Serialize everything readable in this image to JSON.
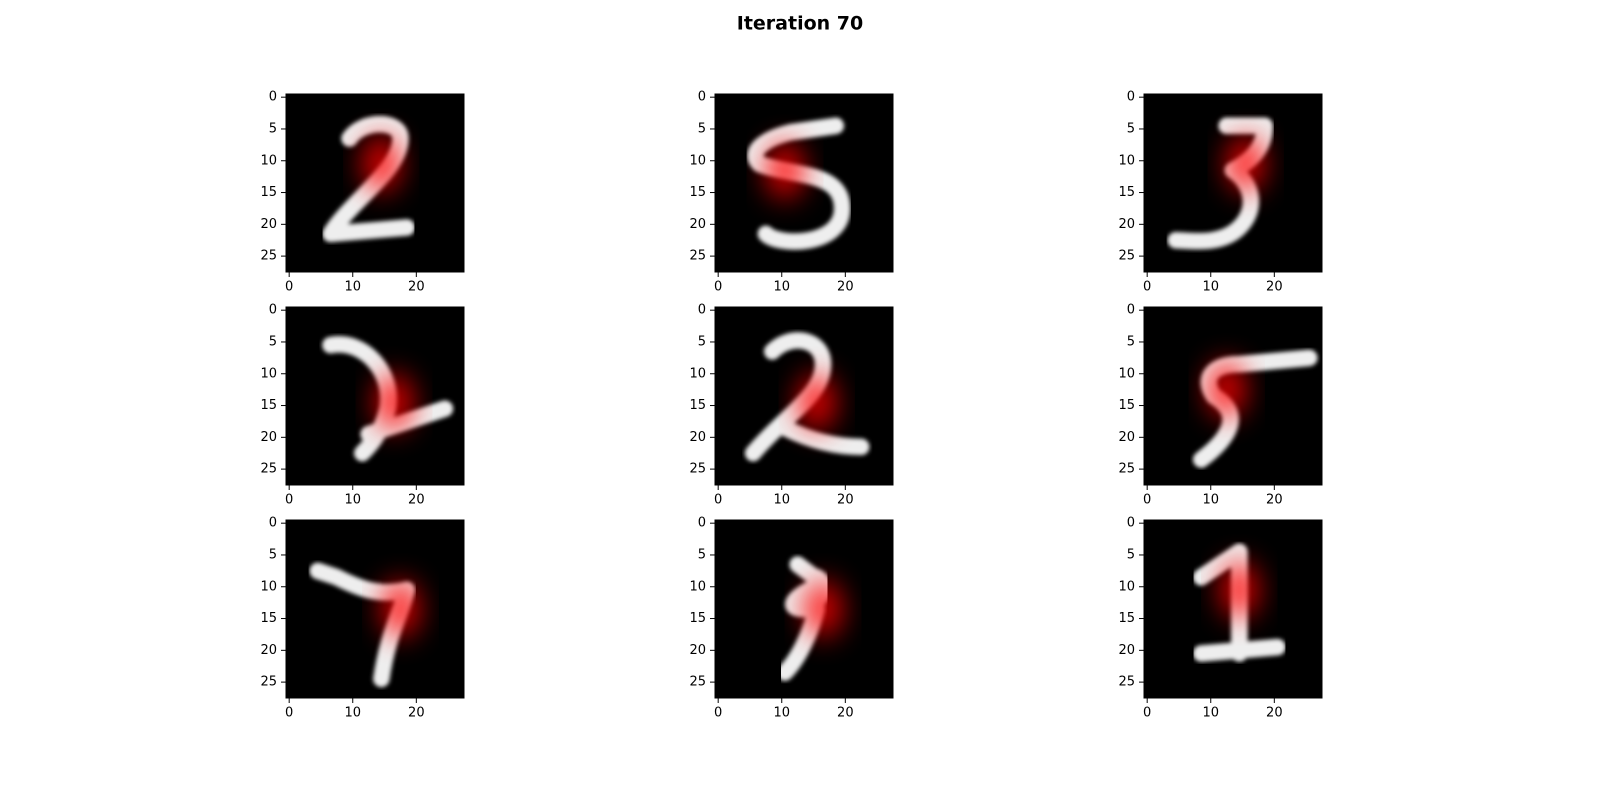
{
  "title": "Iteration 70",
  "chart_data": [
    {
      "type": "image",
      "xlim": [
        -0.5,
        27.5
      ],
      "ylim": [
        27.5,
        -0.5
      ],
      "xticks": [
        0,
        10,
        20
      ],
      "yticks": [
        0,
        5,
        10,
        15,
        20,
        25
      ]
    },
    {
      "type": "image",
      "xlim": [
        -0.5,
        27.5
      ],
      "ylim": [
        27.5,
        -0.5
      ],
      "xticks": [
        0,
        10,
        20
      ],
      "yticks": [
        0,
        5,
        10,
        15,
        20,
        25
      ]
    },
    {
      "type": "image",
      "xlim": [
        -0.5,
        27.5
      ],
      "ylim": [
        27.5,
        -0.5
      ],
      "xticks": [
        0,
        10,
        20
      ],
      "yticks": [
        0,
        5,
        10,
        15,
        20,
        25
      ]
    },
    {
      "type": "image",
      "xlim": [
        -0.5,
        27.5
      ],
      "ylim": [
        27.5,
        -0.5
      ],
      "xticks": [
        0,
        10,
        20
      ],
      "yticks": [
        0,
        5,
        10,
        15,
        20,
        25
      ]
    },
    {
      "type": "image",
      "xlim": [
        -0.5,
        27.5
      ],
      "ylim": [
        27.5,
        -0.5
      ],
      "xticks": [
        0,
        10,
        20
      ],
      "yticks": [
        0,
        5,
        10,
        15,
        20,
        25
      ]
    },
    {
      "type": "image",
      "xlim": [
        -0.5,
        27.5
      ],
      "ylim": [
        27.5,
        -0.5
      ],
      "xticks": [
        0,
        10,
        20
      ],
      "yticks": [
        0,
        5,
        10,
        15,
        20,
        25
      ]
    },
    {
      "type": "image",
      "xlim": [
        -0.5,
        27.5
      ],
      "ylim": [
        27.5,
        -0.5
      ],
      "xticks": [
        0,
        10,
        20
      ],
      "yticks": [
        0,
        5,
        10,
        15,
        20,
        25
      ]
    },
    {
      "type": "image",
      "xlim": [
        -0.5,
        27.5
      ],
      "ylim": [
        27.5,
        -0.5
      ],
      "xticks": [
        0,
        10,
        20
      ],
      "yticks": [
        0,
        5,
        10,
        15,
        20,
        25
      ]
    },
    {
      "type": "image",
      "xlim": [
        -0.5,
        27.5
      ],
      "ylim": [
        27.5,
        -0.5
      ],
      "xticks": [
        0,
        10,
        20
      ],
      "yticks": [
        0,
        5,
        10,
        15,
        20,
        25
      ]
    }
  ]
}
